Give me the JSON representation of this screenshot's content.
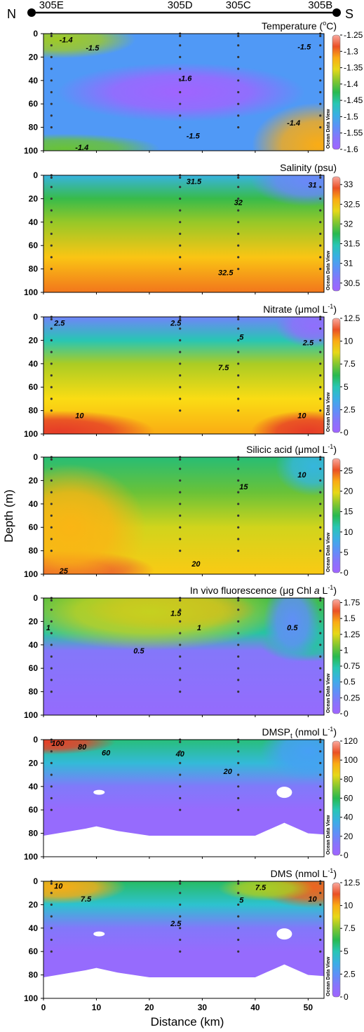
{
  "transect": {
    "north": "N",
    "south": "S",
    "stations": [
      {
        "name": "305E",
        "km": 1.5
      },
      {
        "name": "305D",
        "km": 25.8
      },
      {
        "name": "305C",
        "km": 36.8
      },
      {
        "name": "305B",
        "km": 52.3
      }
    ]
  },
  "ylabel": "Depth (m)",
  "xlabel": "Distance (km)",
  "watermark": "Ocean Data View",
  "x_ticks": [
    "0",
    "10",
    "20",
    "30",
    "40",
    "50"
  ],
  "y_ticks": [
    "0",
    "20",
    "40",
    "60",
    "80",
    "100"
  ],
  "chart_data": [
    {
      "type": "heatmap",
      "title": "Temperature (",
      "title_sup": "o",
      "title_end": "C)",
      "colorbar": {
        "ticks": [
          "-1.25",
          "-1.3",
          "-1.35",
          "-1.4",
          "-1.45",
          "-1.5",
          "-1.55",
          "-1.6"
        ],
        "min": -1.6,
        "max": -1.25
      },
      "contour_labels": [
        {
          "text": "-1.4",
          "x": 3,
          "y": 5
        },
        {
          "text": "-1.5",
          "x": 8,
          "y": 12
        },
        {
          "text": "-1.6",
          "x": 25.5,
          "y": 38
        },
        {
          "text": "-1.5",
          "x": 27,
          "y": 87
        },
        {
          "text": "-1.4",
          "x": 46,
          "y": 76
        },
        {
          "text": "-1.5",
          "x": 48,
          "y": 11
        },
        {
          "text": "-1.4",
          "x": 6,
          "y": 97
        }
      ],
      "blobs": [
        {
          "x": 26,
          "y": 50,
          "rx": 13,
          "ry": 14,
          "v": -1.6
        },
        {
          "x": 3,
          "y": 5,
          "rx": 8,
          "ry": 9,
          "v": -1.38
        },
        {
          "x": 52,
          "y": 95,
          "rx": 7,
          "ry": 20,
          "v": -1.32
        },
        {
          "x": 4,
          "y": 98,
          "rx": 10,
          "ry": 7,
          "v": -1.4
        }
      ],
      "base": -1.52
    },
    {
      "type": "heatmap",
      "title": "Salinity (psu)",
      "colorbar": {
        "ticks": [
          "33",
          "32.5",
          "32",
          "31.5",
          "31",
          "30.5"
        ],
        "min": 30.3,
        "max": 33.2
      },
      "contour_labels": [
        {
          "text": "31.5",
          "x": 27,
          "y": 5
        },
        {
          "text": "32",
          "x": 36,
          "y": 23
        },
        {
          "text": "32.5",
          "x": 33,
          "y": 83
        },
        {
          "text": "31",
          "x": 50,
          "y": 8
        }
      ],
      "bands": [
        {
          "y": 0,
          "v": 31.2
        },
        {
          "y": 20,
          "v": 31.8
        },
        {
          "y": 40,
          "v": 32.1
        },
        {
          "y": 70,
          "v": 32.5
        },
        {
          "y": 100,
          "v": 32.8
        }
      ],
      "blobs": [
        {
          "x": 50,
          "y": 5,
          "rx": 6,
          "ry": 12,
          "v": 30.8
        }
      ]
    },
    {
      "type": "heatmap",
      "title": "Nitrate (",
      "title_unit": "μmol L",
      "title_sup": "-1",
      "title_end": ")",
      "colorbar": {
        "ticks": [
          "12.5",
          "10",
          "7.5",
          "5",
          "2.5",
          "0"
        ],
        "min": 0,
        "max": 12.5
      },
      "contour_labels": [
        {
          "text": "2.5",
          "x": 2,
          "y": 5
        },
        {
          "text": "2.5",
          "x": 24,
          "y": 5
        },
        {
          "text": "5",
          "x": 37,
          "y": 17
        },
        {
          "text": "7.5",
          "x": 33,
          "y": 43
        },
        {
          "text": "2.5",
          "x": 49,
          "y": 22
        },
        {
          "text": "10",
          "x": 6,
          "y": 84
        },
        {
          "text": "10",
          "x": 48,
          "y": 84
        }
      ],
      "bands": [
        {
          "y": 0,
          "v": 2
        },
        {
          "y": 20,
          "v": 5
        },
        {
          "y": 40,
          "v": 8
        },
        {
          "y": 70,
          "v": 9
        },
        {
          "y": 100,
          "v": 10
        }
      ],
      "blobs": [
        {
          "x": 3,
          "y": 98,
          "rx": 10,
          "ry": 10,
          "v": 11.5
        },
        {
          "x": 50,
          "y": 98,
          "rx": 6,
          "ry": 10,
          "v": 11.5
        },
        {
          "x": 51,
          "y": 8,
          "rx": 4,
          "ry": 10,
          "v": 0.8
        }
      ]
    },
    {
      "type": "heatmap",
      "title": "Silicic acid (",
      "title_unit": "μmol L",
      "title_sup": "-1",
      "title_end": ")",
      "colorbar": {
        "ticks": [
          "25",
          "20",
          "15",
          "10",
          "5",
          "0"
        ],
        "min": 0,
        "max": 28
      },
      "contour_labels": [
        {
          "text": "15",
          "x": 37,
          "y": 25
        },
        {
          "text": "20",
          "x": 28,
          "y": 91
        },
        {
          "text": "10",
          "x": 48,
          "y": 15
        },
        {
          "text": "25",
          "x": 3,
          "y": 97
        }
      ],
      "bands": [
        {
          "y": 0,
          "v": 13
        },
        {
          "y": 30,
          "v": 16
        },
        {
          "y": 60,
          "v": 19
        },
        {
          "y": 100,
          "v": 21
        }
      ],
      "blobs": [
        {
          "x": 3,
          "y": 97,
          "rx": 10,
          "ry": 10,
          "v": 26
        },
        {
          "x": 5,
          "y": 60,
          "rx": 8,
          "ry": 30,
          "v": 22
        },
        {
          "x": 51,
          "y": 8,
          "rx": 4,
          "ry": 14,
          "v": 9
        }
      ]
    },
    {
      "type": "heatmap",
      "title": "In vivo fluorescence (",
      "title_unit": "μg Chl ",
      "title_italic": "a",
      "title_unit2": " L",
      "title_sup": "-1",
      "title_end": ")",
      "colorbar": {
        "ticks": [
          "1.75",
          "1.5",
          "1.25",
          "1",
          "0.75",
          "0.5",
          "0.25",
          "0"
        ],
        "min": 0,
        "max": 1.8
      },
      "contour_labels": [
        {
          "text": "1.5",
          "x": 24,
          "y": 13
        },
        {
          "text": "1",
          "x": 0.5,
          "y": 25
        },
        {
          "text": "1",
          "x": 29,
          "y": 25
        },
        {
          "text": "0.5",
          "x": 17,
          "y": 45
        },
        {
          "text": "0.5",
          "x": 46,
          "y": 25
        }
      ],
      "bands": [
        {
          "y": 0,
          "v": 0.95
        },
        {
          "y": 30,
          "v": 0.75
        },
        {
          "y": 45,
          "v": 0.2
        },
        {
          "y": 100,
          "v": 0.08
        }
      ],
      "blobs": [
        {
          "x": 24,
          "y": 10,
          "rx": 9,
          "ry": 10,
          "v": 1.55
        },
        {
          "x": 20,
          "y": 12,
          "rx": 14,
          "ry": 18,
          "v": 1.2
        },
        {
          "x": 50,
          "y": 40,
          "rx": 5,
          "ry": 8,
          "v": 0.75
        },
        {
          "x": 47,
          "y": 20,
          "rx": 3,
          "ry": 20,
          "v": 0.35
        }
      ]
    },
    {
      "type": "heatmap",
      "title": "DMSP",
      "title_sub": "t",
      "title_unit": " (nmol L",
      "title_sup": "-1",
      "title_end": ")",
      "colorbar": {
        "ticks": [
          "120",
          "100",
          "80",
          "60",
          "40",
          "20",
          "0"
        ],
        "min": 0,
        "max": 120
      },
      "contour_labels": [
        {
          "text": "100",
          "x": 1.5,
          "y": 3
        },
        {
          "text": "80",
          "x": 6.5,
          "y": 6
        },
        {
          "text": "60",
          "x": 11,
          "y": 11
        },
        {
          "text": "40",
          "x": 25,
          "y": 12
        },
        {
          "text": "20",
          "x": 34,
          "y": 27
        }
      ],
      "bands": [
        {
          "y": 0,
          "v": 55
        },
        {
          "y": 20,
          "v": 40
        },
        {
          "y": 40,
          "v": 15
        },
        {
          "y": 60,
          "v": 5
        },
        {
          "y": 100,
          "v": 5
        }
      ],
      "blobs": [
        {
          "x": 1,
          "y": 2,
          "rx": 7,
          "ry": 6,
          "v": 110
        },
        {
          "x": 50,
          "y": 10,
          "rx": 5,
          "ry": 14,
          "v": 30
        }
      ],
      "masked_bottom": true
    },
    {
      "type": "heatmap",
      "title": "DMS (nmol L",
      "title_sup": "-1",
      "title_end": ")",
      "colorbar": {
        "ticks": [
          "12.5",
          "10",
          "7.5",
          "5",
          "2.5",
          "0"
        ],
        "min": 0,
        "max": 12.5
      },
      "contour_labels": [
        {
          "text": "10",
          "x": 2,
          "y": 4
        },
        {
          "text": "7.5",
          "x": 7,
          "y": 15
        },
        {
          "text": "5",
          "x": 37,
          "y": 16
        },
        {
          "text": "7.5",
          "x": 40,
          "y": 5
        },
        {
          "text": "10",
          "x": 50,
          "y": 15
        },
        {
          "text": "2.5",
          "x": 24,
          "y": 36
        }
      ],
      "bands": [
        {
          "y": 0,
          "v": 6
        },
        {
          "y": 20,
          "v": 4.5
        },
        {
          "y": 40,
          "v": 1.5
        },
        {
          "y": 60,
          "v": 0.5
        },
        {
          "y": 100,
          "v": 0.5
        }
      ],
      "blobs": [
        {
          "x": 3,
          "y": 5,
          "rx": 7,
          "ry": 8,
          "v": 10
        },
        {
          "x": 51,
          "y": 5,
          "rx": 6,
          "ry": 10,
          "v": 11
        },
        {
          "x": 42,
          "y": 6,
          "rx": 5,
          "ry": 6,
          "v": 8
        }
      ],
      "masked_bottom": true
    }
  ]
}
